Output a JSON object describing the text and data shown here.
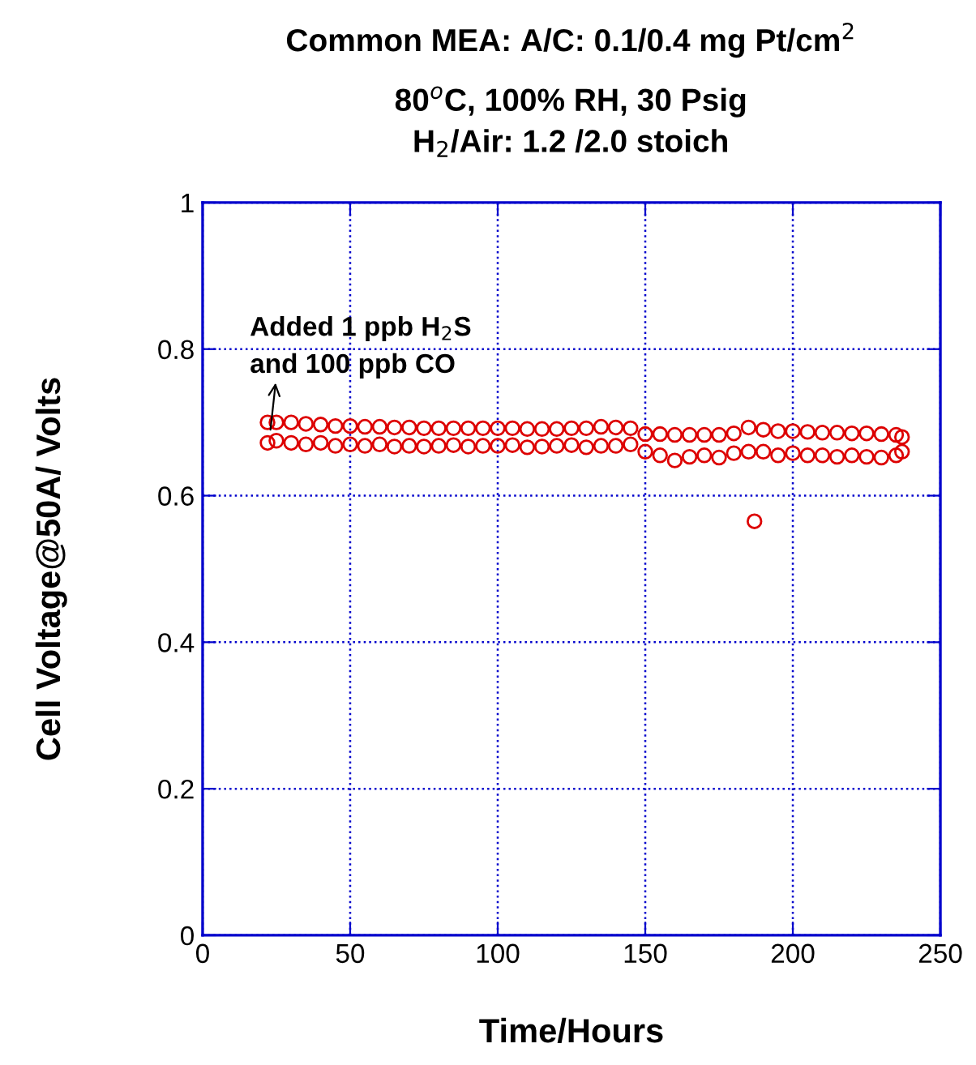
{
  "chart_data": {
    "type": "scatter",
    "title": "Common MEA: A/C: 0.1/0.4 mg Pt/cm$^{2}$",
    "subtitle": "80$^{o}$C, 100% RH, 30 Psig\nH$_{2}$/Air: 1.2 /2.0 stoich",
    "xlabel": "Time/Hours",
    "ylabel": "Cell Voltage@50A/ Volts",
    "annotations": [
      {
        "text": "Added 1 ppb H$_{2}$S\nand 100 ppb CO",
        "x": 23,
        "y": 0.69
      }
    ],
    "series": [
      {
        "color": "#dd0000",
        "x": [
          22,
          25,
          30,
          35,
          40,
          45,
          50,
          55,
          60,
          65,
          70,
          75,
          80,
          85,
          90,
          95,
          100,
          105,
          110,
          115,
          120,
          125,
          130,
          135,
          140,
          145,
          150,
          155,
          160,
          165,
          170,
          175,
          180,
          185,
          190,
          195,
          200,
          205,
          210,
          215,
          220,
          225,
          230,
          235,
          237,
          22,
          25,
          30,
          35,
          40,
          45,
          50,
          55,
          60,
          65,
          70,
          75,
          80,
          85,
          90,
          95,
          100,
          105,
          110,
          115,
          120,
          125,
          130,
          135,
          140,
          145,
          150,
          155,
          160,
          165,
          170,
          175,
          180,
          185,
          190,
          195,
          200,
          205,
          210,
          215,
          220,
          225,
          230,
          235,
          237,
          187
        ],
        "values": [
          0.7,
          0.7,
          0.7,
          0.698,
          0.697,
          0.695,
          0.695,
          0.694,
          0.694,
          0.693,
          0.693,
          0.692,
          0.692,
          0.692,
          0.692,
          0.692,
          0.692,
          0.692,
          0.691,
          0.691,
          0.691,
          0.692,
          0.692,
          0.694,
          0.693,
          0.692,
          0.684,
          0.684,
          0.683,
          0.683,
          0.683,
          0.683,
          0.685,
          0.693,
          0.69,
          0.688,
          0.688,
          0.687,
          0.686,
          0.686,
          0.685,
          0.685,
          0.684,
          0.683,
          0.68,
          0.672,
          0.675,
          0.672,
          0.67,
          0.672,
          0.668,
          0.67,
          0.668,
          0.67,
          0.667,
          0.668,
          0.667,
          0.668,
          0.669,
          0.667,
          0.668,
          0.668,
          0.669,
          0.666,
          0.667,
          0.668,
          0.669,
          0.666,
          0.668,
          0.668,
          0.67,
          0.66,
          0.655,
          0.648,
          0.653,
          0.655,
          0.652,
          0.658,
          0.66,
          0.66,
          0.655,
          0.658,
          0.655,
          0.655,
          0.653,
          0.655,
          0.653,
          0.652,
          0.655,
          0.66,
          0.565
        ]
      }
    ],
    "xlim": [
      0,
      250
    ],
    "ylim": [
      0,
      1
    ],
    "xticks": [
      0,
      50,
      100,
      150,
      200,
      250
    ],
    "yticks": [
      0,
      0.2,
      0.4,
      0.6,
      0.8,
      1
    ],
    "grid": true,
    "marker": "circle"
  }
}
